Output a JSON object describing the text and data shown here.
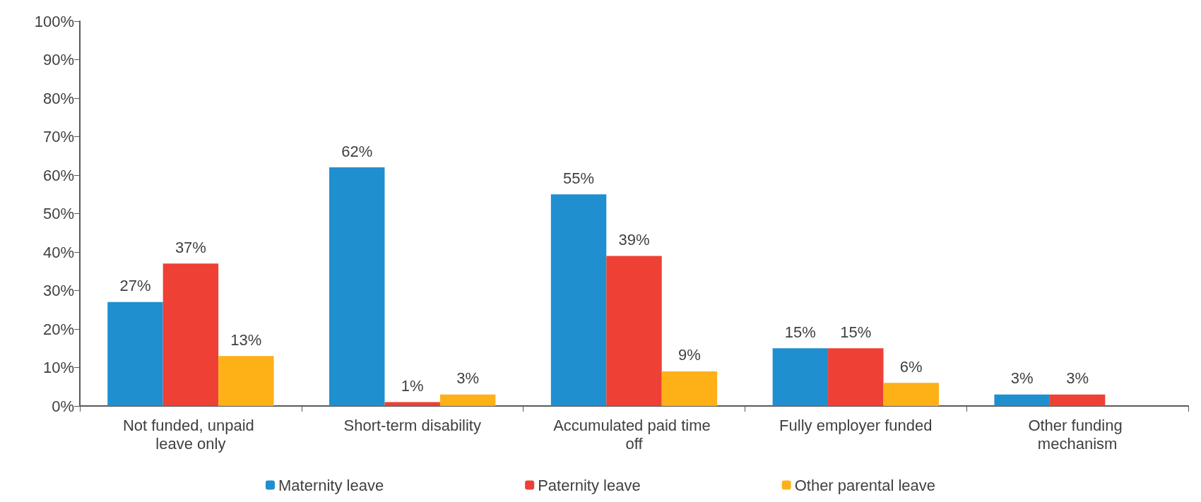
{
  "chart_data": {
    "type": "bar",
    "categories": [
      "Not funded, unpaid leave only",
      "Short-term disability",
      "Accumulated paid time off",
      "Fully employer funded",
      "Other funding mechanism"
    ],
    "series": [
      {
        "name": "Maternity leave",
        "color": "#1f8fd0",
        "values": [
          27,
          62,
          55,
          15,
          3
        ],
        "value_labels": [
          "27%",
          "62%",
          "55%",
          "15%",
          "3%"
        ]
      },
      {
        "name": "Paternity leave",
        "color": "#ee4035",
        "values": [
          37,
          1,
          39,
          15,
          3
        ],
        "value_labels": [
          "37%",
          "1%",
          "39%",
          "15%",
          "3%"
        ]
      },
      {
        "name": "Other parental leave",
        "color": "#fdb117",
        "values": [
          13,
          3,
          9,
          6,
          null
        ],
        "value_labels": [
          "13%",
          "3%",
          "9%",
          "6%",
          null
        ]
      }
    ],
    "ylim": [
      0,
      100
    ],
    "yticks": [
      {
        "value": 0,
        "label": "0%"
      },
      {
        "value": 10,
        "label": "10%"
      },
      {
        "value": 20,
        "label": "20%"
      },
      {
        "value": 30,
        "label": "30%"
      },
      {
        "value": 40,
        "label": "40%"
      },
      {
        "value": 50,
        "label": "50%"
      },
      {
        "value": 60,
        "label": "60%"
      },
      {
        "value": 70,
        "label": "70%"
      },
      {
        "value": 80,
        "label": "80%"
      },
      {
        "value": 90,
        "label": "90%"
      },
      {
        "value": 100,
        "label": "100%"
      }
    ],
    "legend": "bottom",
    "grid": false
  }
}
